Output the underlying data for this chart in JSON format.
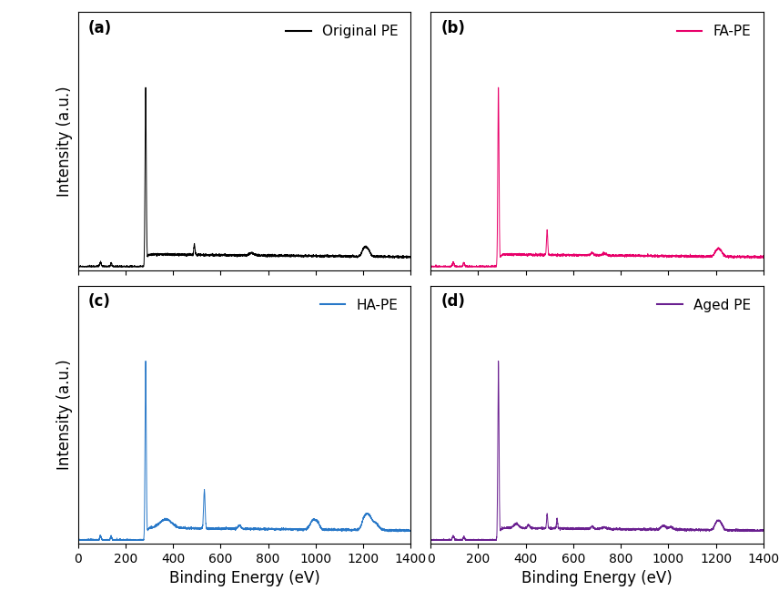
{
  "panels": [
    {
      "label": "(a)",
      "legend": "Original PE",
      "color": "#000000"
    },
    {
      "label": "(b)",
      "legend": "FA-PE",
      "color": "#E8006A"
    },
    {
      "label": "(c)",
      "legend": "HA-PE",
      "color": "#2878C8"
    },
    {
      "label": "(d)",
      "legend": "Aged PE",
      "color": "#6A2090"
    }
  ],
  "xlim": [
    0,
    1400
  ],
  "xticks": [
    0,
    200,
    400,
    600,
    800,
    1000,
    1200,
    1400
  ],
  "xlabel": "Binding Energy (eV)",
  "ylabel": "Intensity (a.u.)",
  "figsize": [
    8.56,
    6.71
  ],
  "dpi": 100,
  "background_color": "#ffffff",
  "spine_color": "#000000",
  "label_fontsize": 12,
  "tick_fontsize": 10,
  "panel_label_fontsize": 12
}
